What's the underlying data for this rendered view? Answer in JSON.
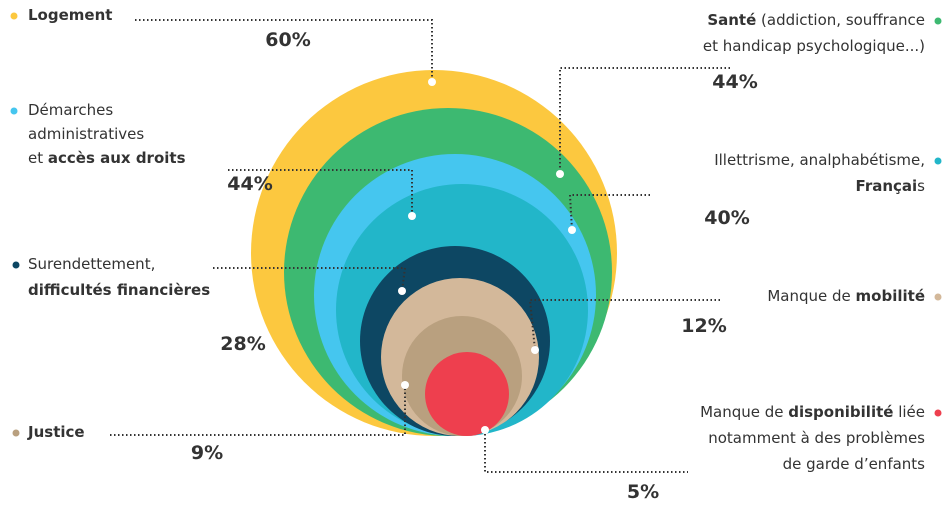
{
  "chart_data": {
    "type": "nested-circles",
    "items": [
      {
        "lines": [
          [
            {
              "text": "Logement",
              "bold": true
            }
          ]
        ],
        "value": 60,
        "value_label": "60%",
        "color": "#fcc83f"
      },
      {
        "lines": [
          [
            {
              "text": "Santé",
              "bold": true
            },
            {
              "text": " (addiction, souffrance",
              "bold": false
            }
          ],
          [
            {
              "text": "et handicap psychologique...)",
              "bold": false
            }
          ]
        ],
        "value": 44,
        "value_label": "44%",
        "color": "#3db971"
      },
      {
        "lines": [
          [
            {
              "text": "Démarches",
              "bold": false
            }
          ],
          [
            {
              "text": "administratives",
              "bold": false
            }
          ],
          [
            {
              "text": "et ",
              "bold": false
            },
            {
              "text": "accès aux droits",
              "bold": true
            }
          ]
        ],
        "value": 44,
        "value_label": "44%",
        "color": "#45c6ef"
      },
      {
        "lines": [
          [
            {
              "text": "Illettrisme, analphabétisme,",
              "bold": false
            }
          ],
          [
            {
              "text": "Françai",
              "bold": true
            },
            {
              "text": "s",
              "bold": false
            }
          ]
        ],
        "value": 40,
        "value_label": "40%",
        "color": "#22b6c9"
      },
      {
        "lines": [
          [
            {
              "text": "Surendettement,",
              "bold": false
            }
          ],
          [
            {
              "text": "difficultés financières",
              "bold": true
            }
          ]
        ],
        "value": 28,
        "value_label": "28%",
        "color": "#0d4763"
      },
      {
        "lines": [
          [
            {
              "text": "Manque de ",
              "bold": false
            },
            {
              "text": "mobilité",
              "bold": true
            }
          ]
        ],
        "value": 12,
        "value_label": "12%",
        "color": "#d3b89a"
      },
      {
        "lines": [
          [
            {
              "text": "Justice",
              "bold": true
            }
          ]
        ],
        "value": 9,
        "value_label": "9%",
        "color": "#b9a07f"
      },
      {
        "lines": [
          [
            {
              "text": "Manque de ",
              "bold": false
            },
            {
              "text": "disponibilité",
              "bold": true
            },
            {
              "text": " liée",
              "bold": false
            }
          ],
          [
            {
              "text": "notamment à des problèmes",
              "bold": false
            }
          ],
          [
            {
              "text": "de garde d’enfants",
              "bold": false
            }
          ]
        ],
        "value": 5,
        "value_label": "5%",
        "color": "#ee3f4e"
      }
    ],
    "value_color": "#d42a4c"
  }
}
